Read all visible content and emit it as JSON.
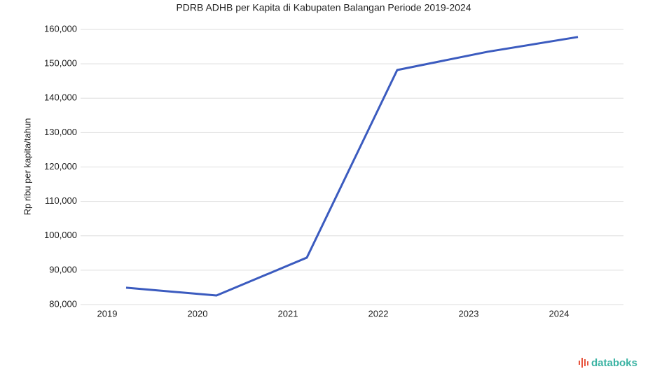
{
  "chart_data": {
    "type": "line",
    "title": "PDRB ADHB per Kapita di Kabupaten Balangan Periode 2019-2024",
    "ylabel": "Rp ribu per kapita/tahun",
    "categories": [
      "2019",
      "2020",
      "2021",
      "2022",
      "2023",
      "2024"
    ],
    "series": [
      {
        "name": "PDRB ADHB per Kapita",
        "color": "#3b5bbf",
        "values": [
          84900,
          82650,
          93650,
          148200,
          153500,
          157800
        ]
      }
    ],
    "ylim": [
      80000,
      160000
    ],
    "yticks": [
      {
        "value": 80000,
        "label": "80,000"
      },
      {
        "value": 90000,
        "label": "90,000"
      },
      {
        "value": 100000,
        "label": "100,000"
      },
      {
        "value": 110000,
        "label": "110,000"
      },
      {
        "value": 120000,
        "label": "120,000"
      },
      {
        "value": 130000,
        "label": "130,000"
      },
      {
        "value": 140000,
        "label": "140,000"
      },
      {
        "value": 150000,
        "label": "150,000"
      },
      {
        "value": 160000,
        "label": "160,000"
      }
    ],
    "grid": true,
    "watermark": "databoks"
  }
}
